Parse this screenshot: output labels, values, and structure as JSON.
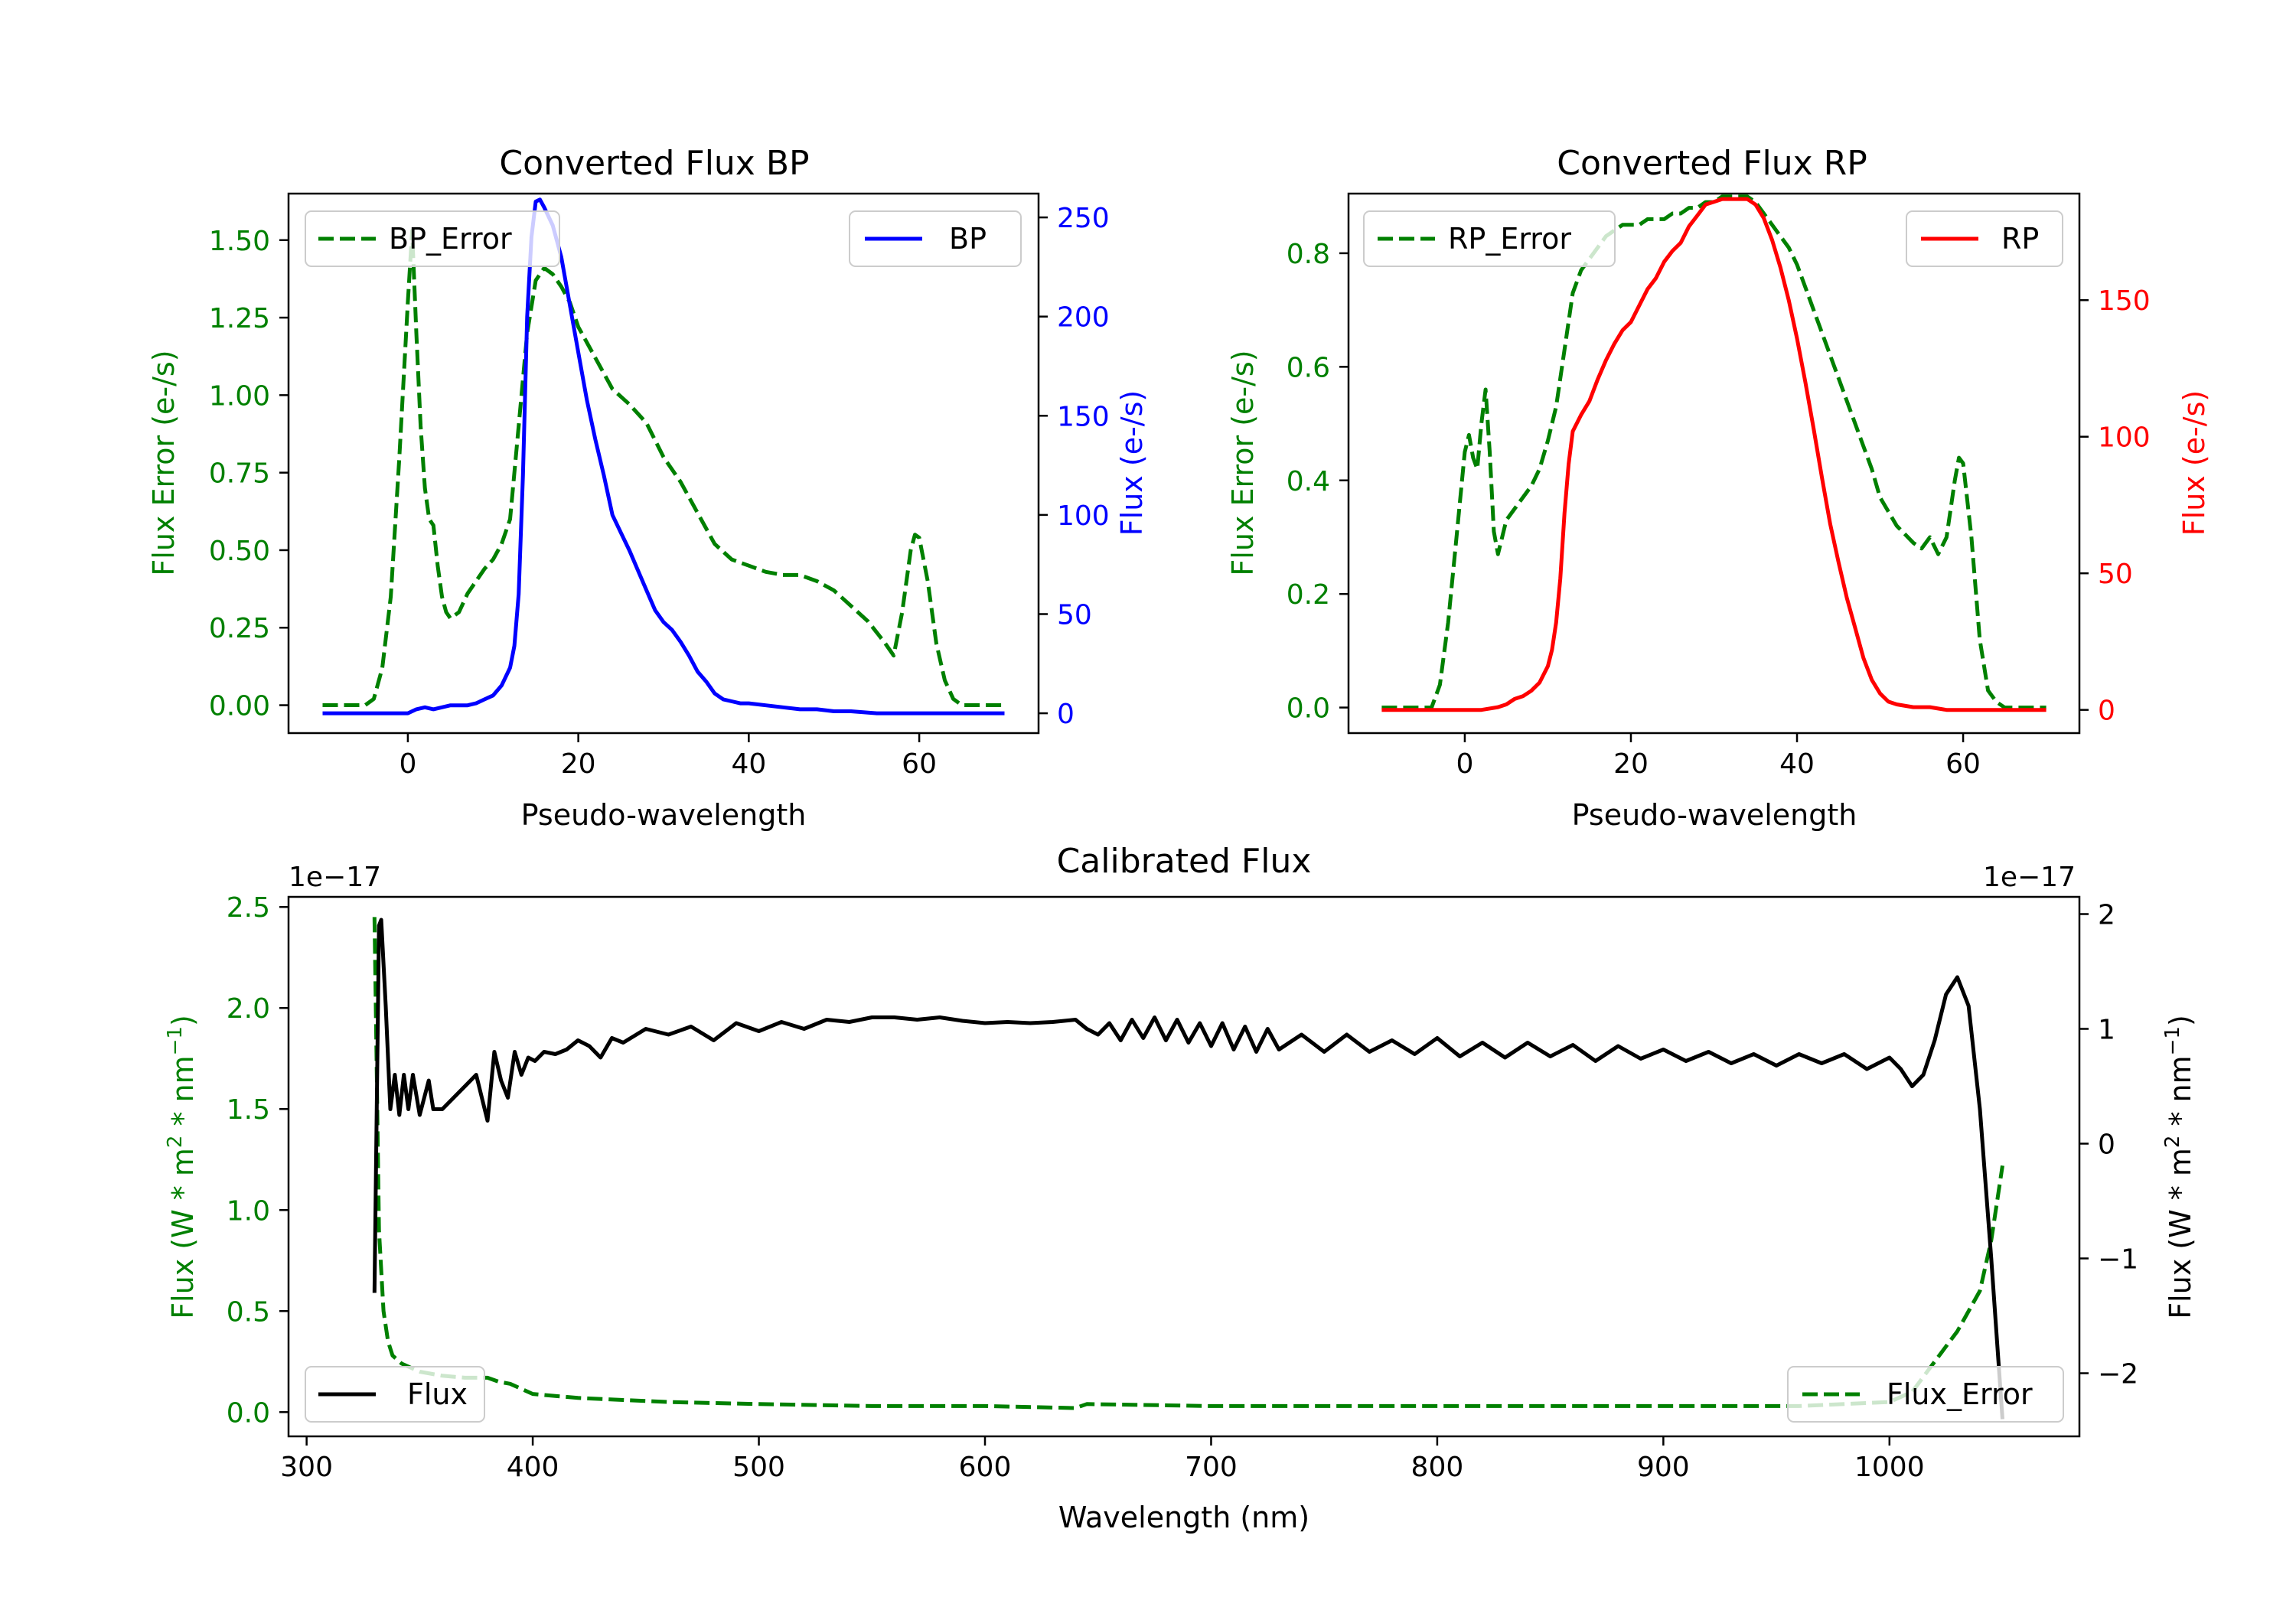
{
  "colors": {
    "bp": "#0000ff",
    "rp": "#ff0000",
    "error": "#008000",
    "flux": "#000000"
  },
  "chart_data": [
    {
      "id": "bp",
      "type": "line",
      "title": "Converted Flux BP",
      "xlabel": "Pseudo-wavelength",
      "ylabel_left": "Flux Error (e-/s)",
      "ylabel_right": "Flux (e-/s)",
      "xlim": [
        -14,
        74
      ],
      "ylim_left": [
        -0.09,
        1.65
      ],
      "ylim_right": [
        -10,
        262
      ],
      "xticks": [
        0,
        20,
        40,
        60
      ],
      "yticks_left": [
        0.0,
        0.25,
        0.5,
        0.75,
        1.0,
        1.25,
        1.5
      ],
      "yticks_left_labels": [
        "0.00",
        "0.25",
        "0.50",
        "0.75",
        "1.00",
        "1.25",
        "1.50"
      ],
      "yticks_right": [
        0,
        50,
        100,
        150,
        200,
        250
      ],
      "yticks_right_labels": [
        "0",
        "50",
        "100",
        "150",
        "200",
        "250"
      ],
      "legend_left": "BP_Error",
      "legend_right": "BP",
      "series": [
        {
          "name": "BP_Error",
          "axis": "left",
          "style": "dashed",
          "color": "#008000",
          "x": [
            -10,
            -5,
            -4,
            -3,
            -2,
            -1,
            0,
            0.5,
            1,
            1.5,
            2,
            2.5,
            3,
            3.5,
            4,
            4.5,
            5,
            6,
            7,
            8,
            9,
            10,
            11,
            12,
            13,
            14,
            15,
            16,
            17,
            18,
            19,
            20,
            22,
            24,
            26,
            28,
            30,
            32,
            34,
            36,
            38,
            40,
            42,
            44,
            46,
            48,
            50,
            52,
            54,
            56,
            57,
            58,
            59,
            59.5,
            60,
            61,
            62,
            63,
            64,
            65,
            70
          ],
          "values": [
            0,
            0,
            0.02,
            0.12,
            0.35,
            0.8,
            1.3,
            1.53,
            1.2,
            0.9,
            0.7,
            0.6,
            0.58,
            0.45,
            0.35,
            0.3,
            0.28,
            0.3,
            0.36,
            0.4,
            0.44,
            0.47,
            0.52,
            0.6,
            0.9,
            1.2,
            1.37,
            1.41,
            1.39,
            1.35,
            1.3,
            1.22,
            1.12,
            1.02,
            0.97,
            0.91,
            0.8,
            0.72,
            0.62,
            0.52,
            0.47,
            0.45,
            0.43,
            0.42,
            0.42,
            0.4,
            0.37,
            0.32,
            0.27,
            0.2,
            0.16,
            0.3,
            0.5,
            0.55,
            0.54,
            0.4,
            0.2,
            0.08,
            0.02,
            0,
            0
          ]
        },
        {
          "name": "BP",
          "axis": "right",
          "style": "solid",
          "color": "#0000ff",
          "x": [
            -10,
            0,
            1,
            2,
            3,
            4,
            5,
            6,
            7,
            8,
            9,
            10,
            11,
            12,
            12.5,
            13,
            13.5,
            14,
            14.5,
            15,
            15.5,
            16,
            17,
            18,
            19,
            20,
            21,
            22,
            23,
            24,
            25,
            26,
            27,
            28,
            29,
            30,
            31,
            32,
            33,
            34,
            35,
            36,
            37,
            38,
            39,
            40,
            42,
            44,
            46,
            48,
            50,
            52,
            55,
            60,
            70
          ],
          "values": [
            0,
            0,
            2,
            3,
            2,
            3,
            4,
            4,
            4,
            5,
            7,
            9,
            14,
            23,
            34,
            60,
            120,
            200,
            240,
            258,
            259,
            255,
            246,
            230,
            206,
            182,
            158,
            138,
            120,
            100,
            91,
            82,
            72,
            62,
            52,
            46,
            42,
            36,
            29,
            21,
            16,
            10,
            7,
            6,
            5,
            5,
            4,
            3,
            2,
            2,
            1,
            1,
            0,
            0,
            0
          ]
        }
      ]
    },
    {
      "id": "rp",
      "type": "line",
      "title": "Converted Flux RP",
      "xlabel": "Pseudo-wavelength",
      "ylabel_left": "Flux Error (e-/s)",
      "ylabel_right": "Flux (e-/s)",
      "xlim": [
        -14,
        74
      ],
      "ylim_left": [
        -0.045,
        0.905
      ],
      "ylim_right": [
        -8.5,
        189
      ],
      "xticks": [
        0,
        20,
        40,
        60
      ],
      "yticks_left": [
        0.0,
        0.2,
        0.4,
        0.6,
        0.8
      ],
      "yticks_left_labels": [
        "0.0",
        "0.2",
        "0.4",
        "0.6",
        "0.8"
      ],
      "yticks_right": [
        0,
        50,
        100,
        150
      ],
      "yticks_right_labels": [
        "0",
        "50",
        "100",
        "150"
      ],
      "legend_left": "RP_Error",
      "legend_right": "RP",
      "series": [
        {
          "name": "RP_Error",
          "axis": "left",
          "style": "dashed",
          "color": "#008000",
          "x": [
            -10,
            -5,
            -4,
            -3,
            -2,
            -1,
            0,
            0.5,
            1,
            1.5,
            2,
            2.5,
            3,
            3.5,
            4,
            5,
            6,
            7,
            8,
            9,
            10,
            11,
            12,
            13,
            14,
            15,
            16,
            17,
            18,
            19,
            20,
            21,
            22,
            23,
            24,
            25,
            26,
            27,
            28,
            29,
            30,
            31,
            32,
            33,
            34,
            35,
            36,
            37,
            38,
            39,
            40,
            41,
            42,
            43,
            44,
            45,
            46,
            47,
            48,
            49,
            50,
            52,
            54,
            55,
            56,
            57,
            58,
            59,
            59.5,
            60,
            61,
            62,
            63,
            64,
            65,
            70
          ],
          "values": [
            0,
            0,
            0,
            0.04,
            0.15,
            0.3,
            0.45,
            0.48,
            0.44,
            0.42,
            0.5,
            0.56,
            0.45,
            0.31,
            0.27,
            0.33,
            0.35,
            0.37,
            0.39,
            0.42,
            0.47,
            0.53,
            0.63,
            0.73,
            0.77,
            0.79,
            0.81,
            0.83,
            0.84,
            0.85,
            0.85,
            0.85,
            0.86,
            0.86,
            0.86,
            0.87,
            0.87,
            0.88,
            0.88,
            0.89,
            0.89,
            0.9,
            0.9,
            0.9,
            0.9,
            0.89,
            0.87,
            0.85,
            0.83,
            0.81,
            0.78,
            0.74,
            0.7,
            0.66,
            0.62,
            0.58,
            0.54,
            0.5,
            0.46,
            0.42,
            0.37,
            0.32,
            0.29,
            0.28,
            0.3,
            0.27,
            0.3,
            0.4,
            0.44,
            0.43,
            0.3,
            0.12,
            0.03,
            0.01,
            0,
            0
          ]
        },
        {
          "name": "RP",
          "axis": "right",
          "style": "solid",
          "color": "#ff0000",
          "x": [
            -10,
            -2,
            0,
            2,
            4,
            5,
            6,
            7,
            8,
            9,
            10,
            10.5,
            11,
            11.5,
            12,
            12.5,
            13,
            14,
            15,
            16,
            17,
            18,
            19,
            20,
            21,
            22,
            23,
            24,
            25,
            26,
            27,
            28,
            29,
            30,
            31,
            32,
            33,
            34,
            35,
            36,
            37,
            38,
            39,
            40,
            41,
            42,
            43,
            44,
            45,
            46,
            47,
            48,
            49,
            50,
            51,
            52,
            54,
            56,
            58,
            60,
            65,
            70
          ],
          "values": [
            0,
            0,
            0,
            0,
            1,
            2,
            4,
            5,
            7,
            10,
            16,
            22,
            32,
            48,
            72,
            90,
            102,
            108,
            113,
            121,
            128,
            134,
            139,
            142,
            148,
            154,
            158,
            164,
            168,
            171,
            177,
            181,
            185,
            186,
            187,
            187,
            187,
            187,
            185,
            180,
            172,
            162,
            150,
            136,
            120,
            103,
            85,
            68,
            54,
            41,
            30,
            19,
            11,
            6,
            3,
            2,
            1,
            1,
            0,
            0,
            0,
            0
          ]
        }
      ]
    },
    {
      "id": "calibrated",
      "type": "line",
      "title": "Calibrated Flux",
      "xlabel": "Wavelength (nm)",
      "ylabel_left": "Flux (W * m2 * nm-1)",
      "ylabel_right": "Flux (W * m2 * nm-1)",
      "ylabel_parts": {
        "pre": "Flux (W * m",
        "sup1": "2",
        "mid": " * nm",
        "sup2": "−1",
        "post": ")"
      },
      "offset_left": "1e−17",
      "offset_right": "1e−17",
      "xlim": [
        292,
        1084
      ],
      "ylim_left": [
        -0.12,
        2.55
      ],
      "ylim_right": [
        -2.55,
        2.15
      ],
      "xticks": [
        300,
        400,
        500,
        600,
        700,
        800,
        900,
        1000
      ],
      "yticks_left": [
        0.0,
        0.5,
        1.0,
        1.5,
        2.0,
        2.5
      ],
      "yticks_left_labels": [
        "0.0",
        "0.5",
        "1.0",
        "1.5",
        "2.0",
        "2.5"
      ],
      "yticks_right": [
        -2,
        -1,
        0,
        1,
        2
      ],
      "yticks_right_labels": [
        "−2",
        "−1",
        "0",
        "1",
        "2"
      ],
      "legend_left": "Flux",
      "legend_right": "Flux_Error",
      "series": [
        {
          "name": "Flux_Error",
          "axis": "left",
          "style": "dashed",
          "color": "#008000",
          "x": [
            330,
            331,
            332,
            334,
            336,
            338,
            342,
            350,
            360,
            370,
            380,
            385,
            390,
            400,
            420,
            440,
            460,
            500,
            550,
            600,
            640,
            645,
            700,
            800,
            900,
            960,
            1000,
            1010,
            1020,
            1030,
            1040,
            1045,
            1050
          ],
          "values": [
            2.45,
            1.7,
            0.9,
            0.5,
            0.35,
            0.28,
            0.24,
            0.2,
            0.18,
            0.17,
            0.17,
            0.15,
            0.14,
            0.09,
            0.07,
            0.06,
            0.05,
            0.04,
            0.03,
            0.03,
            0.02,
            0.04,
            0.03,
            0.03,
            0.03,
            0.03,
            0.05,
            0.1,
            0.25,
            0.4,
            0.6,
            0.85,
            1.22
          ]
        },
        {
          "name": "Flux",
          "axis": "right",
          "style": "solid",
          "color": "#000000",
          "x": [
            330,
            332,
            333,
            335,
            337,
            339,
            341,
            343,
            345,
            347,
            350,
            352,
            354,
            356,
            360,
            365,
            370,
            375,
            380,
            383,
            386,
            389,
            392,
            395,
            398,
            401,
            405,
            410,
            415,
            420,
            425,
            430,
            435,
            440,
            450,
            460,
            470,
            480,
            490,
            500,
            510,
            520,
            530,
            540,
            550,
            560,
            570,
            580,
            590,
            600,
            610,
            620,
            630,
            640,
            645,
            650,
            655,
            660,
            665,
            670,
            675,
            680,
            685,
            690,
            695,
            700,
            705,
            710,
            715,
            720,
            725,
            730,
            740,
            750,
            760,
            770,
            780,
            790,
            800,
            810,
            820,
            830,
            840,
            850,
            860,
            870,
            880,
            890,
            900,
            910,
            920,
            930,
            940,
            950,
            960,
            970,
            980,
            990,
            1000,
            1005,
            1010,
            1015,
            1020,
            1025,
            1030,
            1035,
            1040,
            1045,
            1050
          ],
          "values": [
            -1.3,
            1.9,
            1.95,
            1.2,
            0.3,
            0.6,
            0.25,
            0.6,
            0.3,
            0.6,
            0.25,
            0.4,
            0.55,
            0.3,
            0.3,
            0.4,
            0.5,
            0.6,
            0.2,
            0.8,
            0.55,
            0.4,
            0.8,
            0.6,
            0.75,
            0.72,
            0.8,
            0.78,
            0.82,
            0.9,
            0.85,
            0.75,
            0.92,
            0.88,
            1.0,
            0.95,
            1.02,
            0.9,
            1.05,
            0.98,
            1.06,
            1.0,
            1.08,
            1.06,
            1.1,
            1.1,
            1.08,
            1.1,
            1.07,
            1.05,
            1.06,
            1.05,
            1.06,
            1.08,
            1.0,
            0.95,
            1.05,
            0.9,
            1.08,
            0.92,
            1.1,
            0.9,
            1.08,
            0.88,
            1.05,
            0.85,
            1.05,
            0.82,
            1.02,
            0.8,
            1.0,
            0.82,
            0.95,
            0.8,
            0.95,
            0.8,
            0.9,
            0.78,
            0.92,
            0.76,
            0.88,
            0.75,
            0.88,
            0.76,
            0.86,
            0.72,
            0.85,
            0.74,
            0.82,
            0.72,
            0.8,
            0.7,
            0.78,
            0.68,
            0.78,
            0.7,
            0.78,
            0.65,
            0.75,
            0.65,
            0.5,
            0.6,
            0.9,
            1.3,
            1.45,
            1.2,
            0.3,
            -1.0,
            -2.4
          ]
        }
      ]
    }
  ]
}
